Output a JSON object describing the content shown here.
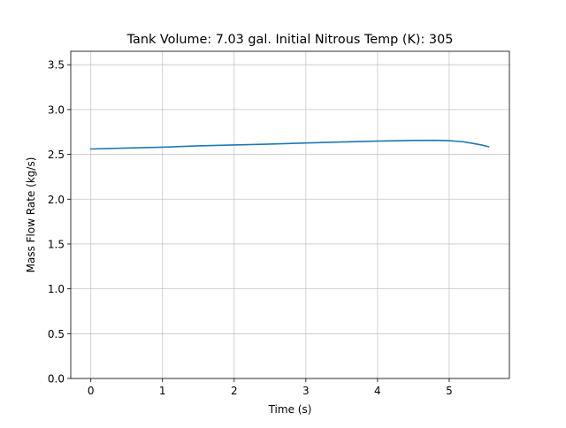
{
  "chart_data": {
    "type": "line",
    "title": "Tank Volume: 7.03 gal. Initial Nitrous Temp (K): 305",
    "xlabel": "Time (s)",
    "ylabel": "Mass Flow Rate (kg/s)",
    "xlim": [
      -0.28,
      5.84
    ],
    "ylim": [
      0.0,
      3.65
    ],
    "x_ticks": [
      0,
      1,
      2,
      3,
      4,
      5
    ],
    "x_tick_labels": [
      "0",
      "1",
      "2",
      "3",
      "4",
      "5"
    ],
    "y_ticks": [
      0.0,
      0.5,
      1.0,
      1.5,
      2.0,
      2.5,
      3.0,
      3.5
    ],
    "y_tick_labels": [
      "0.0",
      "0.5",
      "1.0",
      "1.5",
      "2.0",
      "2.5",
      "3.0",
      "3.5"
    ],
    "grid": true,
    "line_color": "#1f77b4",
    "grid_color": "#b0b0b0",
    "series": [
      {
        "x": [
          0,
          0.5,
          1.0,
          1.5,
          2.0,
          2.5,
          3.0,
          3.5,
          4.0,
          4.5,
          4.8,
          5.0,
          5.2,
          5.35,
          5.45,
          5.55
        ],
        "values": [
          2.56,
          2.57,
          2.58,
          2.595,
          2.605,
          2.615,
          2.627,
          2.638,
          2.648,
          2.655,
          2.657,
          2.653,
          2.64,
          2.62,
          2.605,
          2.585
        ]
      }
    ]
  }
}
